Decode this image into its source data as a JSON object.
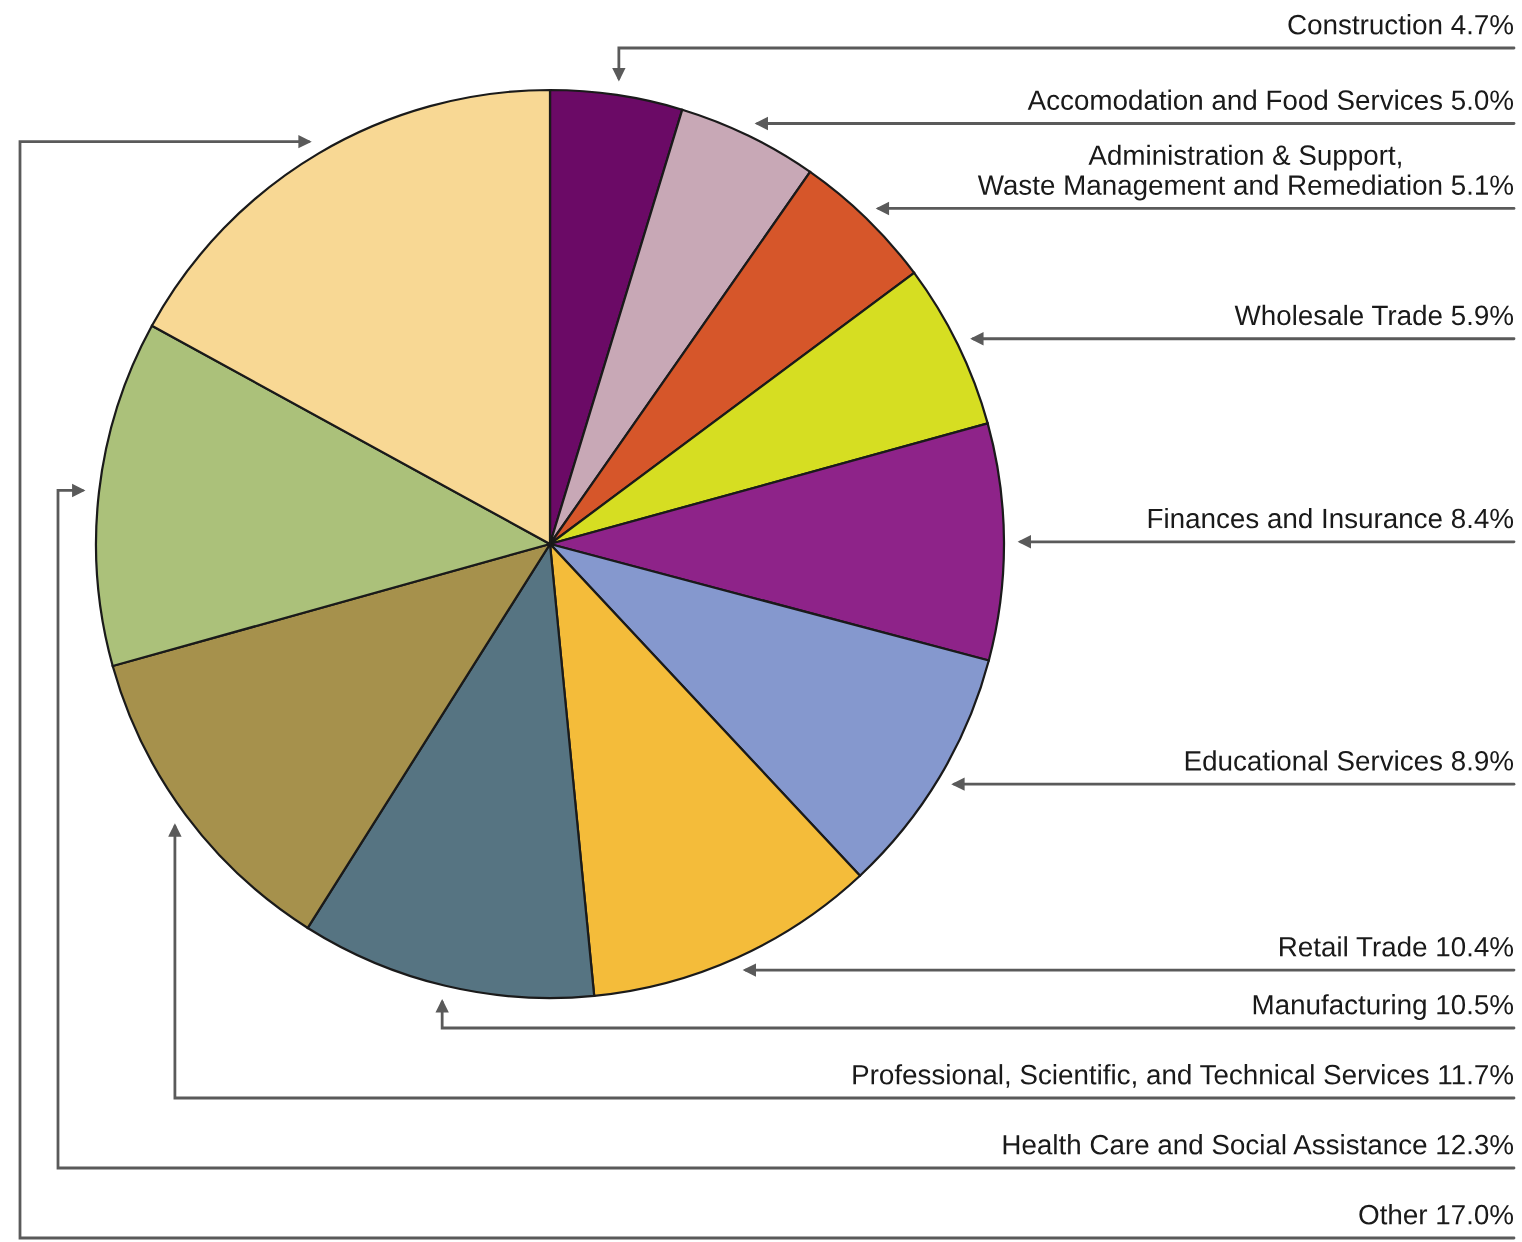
{
  "chart_data": {
    "type": "pie",
    "categories": [
      "Construction",
      "Accomodation and Food Services",
      "Administration & Support,\nWaste Management and Remediation",
      "Wholesale Trade",
      "Finances and Insurance",
      "Educational Services",
      "Retail Trade",
      "Manufacturing",
      "Professional, Scientific, and Technical Services",
      "Health Care and Social Assistance",
      "Other"
    ],
    "values": [
      4.7,
      5.0,
      5.1,
      5.9,
      8.4,
      8.9,
      10.4,
      10.5,
      11.7,
      12.3,
      17.0
    ],
    "value_labels": [
      "4.7%",
      "5.0%",
      "5.1%",
      "5.9%",
      "8.4%",
      "8.9%",
      "10.4%",
      "10.5%",
      "11.7%",
      "12.3%",
      "17.0%"
    ],
    "colors": [
      "#6b0a66",
      "#c8a8b6",
      "#d6562a",
      "#d6de22",
      "#8e2389",
      "#8598ce",
      "#f4bc3a",
      "#567482",
      "#a6914c",
      "#abc17a",
      "#f8d894"
    ]
  }
}
